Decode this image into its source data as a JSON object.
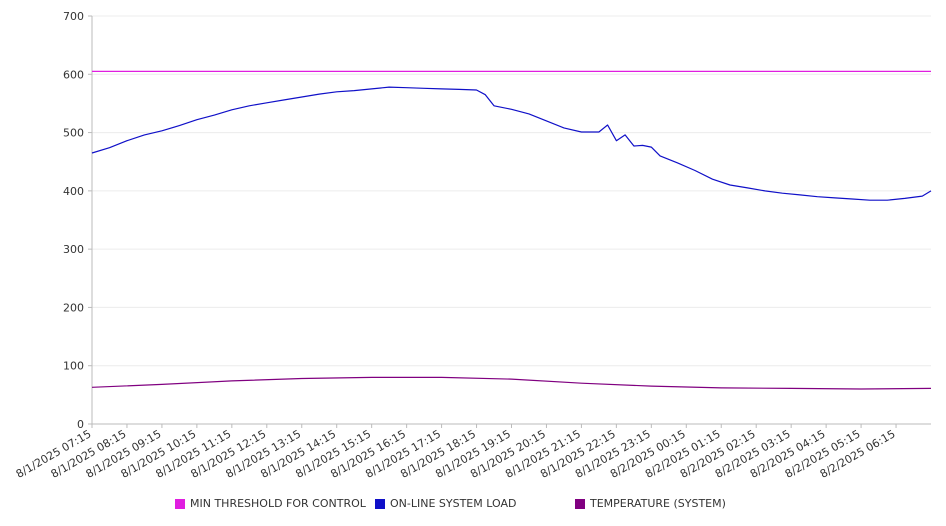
{
  "chart_data": {
    "type": "line",
    "title": "",
    "xlabel": "",
    "ylabel": "",
    "ylim": [
      0,
      700
    ],
    "yticks": [
      0,
      100,
      200,
      300,
      400,
      500,
      600,
      700
    ],
    "grid": true,
    "legend_position": "bottom",
    "x_tick_labels": [
      "8/1/2025 07:15",
      "8/1/2025 08:15",
      "8/1/2025 09:15",
      "8/1/2025 10:15",
      "8/1/2025 11:15",
      "8/1/2025 12:15",
      "8/1/2025 13:15",
      "8/1/2025 14:15",
      "8/1/2025 15:15",
      "8/1/2025 16:15",
      "8/1/2025 17:15",
      "8/1/2025 18:15",
      "8/1/2025 19:15",
      "8/1/2025 20:15",
      "8/1/2025 21:15",
      "8/1/2025 22:15",
      "8/1/2025 23:15",
      "8/2/2025 00:15",
      "8/2/2025 01:15",
      "8/2/2025 02:15",
      "8/2/2025 03:15",
      "8/2/2025 04:15",
      "8/2/2025 05:15",
      "8/2/2025 06:15"
    ],
    "series": [
      {
        "name": "MIN THRESHOLD FOR CONTROL",
        "color": "#e01ee0",
        "points": [
          [
            "8/1/2025 07:15",
            605
          ],
          [
            "8/2/2025 07:15",
            605
          ]
        ]
      },
      {
        "name": "ON-LINE SYSTEM LOAD",
        "color": "#1010c8",
        "points": [
          [
            "8/1/2025 07:15",
            465
          ],
          [
            "8/1/2025 07:45",
            474
          ],
          [
            "8/1/2025 08:15",
            486
          ],
          [
            "8/1/2025 08:45",
            496
          ],
          [
            "8/1/2025 09:15",
            503
          ],
          [
            "8/1/2025 09:45",
            512
          ],
          [
            "8/1/2025 10:15",
            522
          ],
          [
            "8/1/2025 10:45",
            530
          ],
          [
            "8/1/2025 11:15",
            539
          ],
          [
            "8/1/2025 11:45",
            546
          ],
          [
            "8/1/2025 12:15",
            551
          ],
          [
            "8/1/2025 12:45",
            556
          ],
          [
            "8/1/2025 13:15",
            561
          ],
          [
            "8/1/2025 13:45",
            566
          ],
          [
            "8/1/2025 14:15",
            570
          ],
          [
            "8/1/2025 14:45",
            572
          ],
          [
            "8/1/2025 15:15",
            575
          ],
          [
            "8/1/2025 15:45",
            578
          ],
          [
            "8/1/2025 16:15",
            577
          ],
          [
            "8/1/2025 16:45",
            576
          ],
          [
            "8/1/2025 17:15",
            575
          ],
          [
            "8/1/2025 17:45",
            574
          ],
          [
            "8/1/2025 18:15",
            573
          ],
          [
            "8/1/2025 18:30",
            565
          ],
          [
            "8/1/2025 18:45",
            546
          ],
          [
            "8/1/2025 19:15",
            540
          ],
          [
            "8/1/2025 19:45",
            532
          ],
          [
            "8/1/2025 20:15",
            520
          ],
          [
            "8/1/2025 20:45",
            508
          ],
          [
            "8/1/2025 21:15",
            501
          ],
          [
            "8/1/2025 21:45",
            501
          ],
          [
            "8/1/2025 22:00",
            513
          ],
          [
            "8/1/2025 22:15",
            486
          ],
          [
            "8/1/2025 22:30",
            496
          ],
          [
            "8/1/2025 22:45",
            477
          ],
          [
            "8/1/2025 23:00",
            478
          ],
          [
            "8/1/2025 23:15",
            475
          ],
          [
            "8/1/2025 23:30",
            460
          ],
          [
            "8/2/2025 00:00",
            448
          ],
          [
            "8/2/2025 00:30",
            435
          ],
          [
            "8/2/2025 01:00",
            420
          ],
          [
            "8/2/2025 01:30",
            410
          ],
          [
            "8/2/2025 02:00",
            405
          ],
          [
            "8/2/2025 02:30",
            400
          ],
          [
            "8/2/2025 03:00",
            396
          ],
          [
            "8/2/2025 03:30",
            393
          ],
          [
            "8/2/2025 04:00",
            390
          ],
          [
            "8/2/2025 04:30",
            388
          ],
          [
            "8/2/2025 05:00",
            386
          ],
          [
            "8/2/2025 05:30",
            384
          ],
          [
            "8/2/2025 06:00",
            384
          ],
          [
            "8/2/2025 06:30",
            387
          ],
          [
            "8/2/2025 07:00",
            391
          ],
          [
            "8/2/2025 07:15",
            400
          ]
        ]
      },
      {
        "name": "TEMPERATURE (SYSTEM)",
        "color": "#800080",
        "points": [
          [
            "8/1/2025 07:15",
            63
          ],
          [
            "8/1/2025 09:15",
            68
          ],
          [
            "8/1/2025 11:15",
            74
          ],
          [
            "8/1/2025 13:15",
            78
          ],
          [
            "8/1/2025 15:15",
            80
          ],
          [
            "8/1/2025 17:15",
            80
          ],
          [
            "8/1/2025 19:15",
            77
          ],
          [
            "8/1/2025 21:15",
            70
          ],
          [
            "8/1/2025 23:15",
            65
          ],
          [
            "8/2/2025 01:15",
            62
          ],
          [
            "8/2/2025 03:15",
            61
          ],
          [
            "8/2/2025 05:15",
            60
          ],
          [
            "8/2/2025 07:15",
            61
          ]
        ]
      }
    ]
  }
}
